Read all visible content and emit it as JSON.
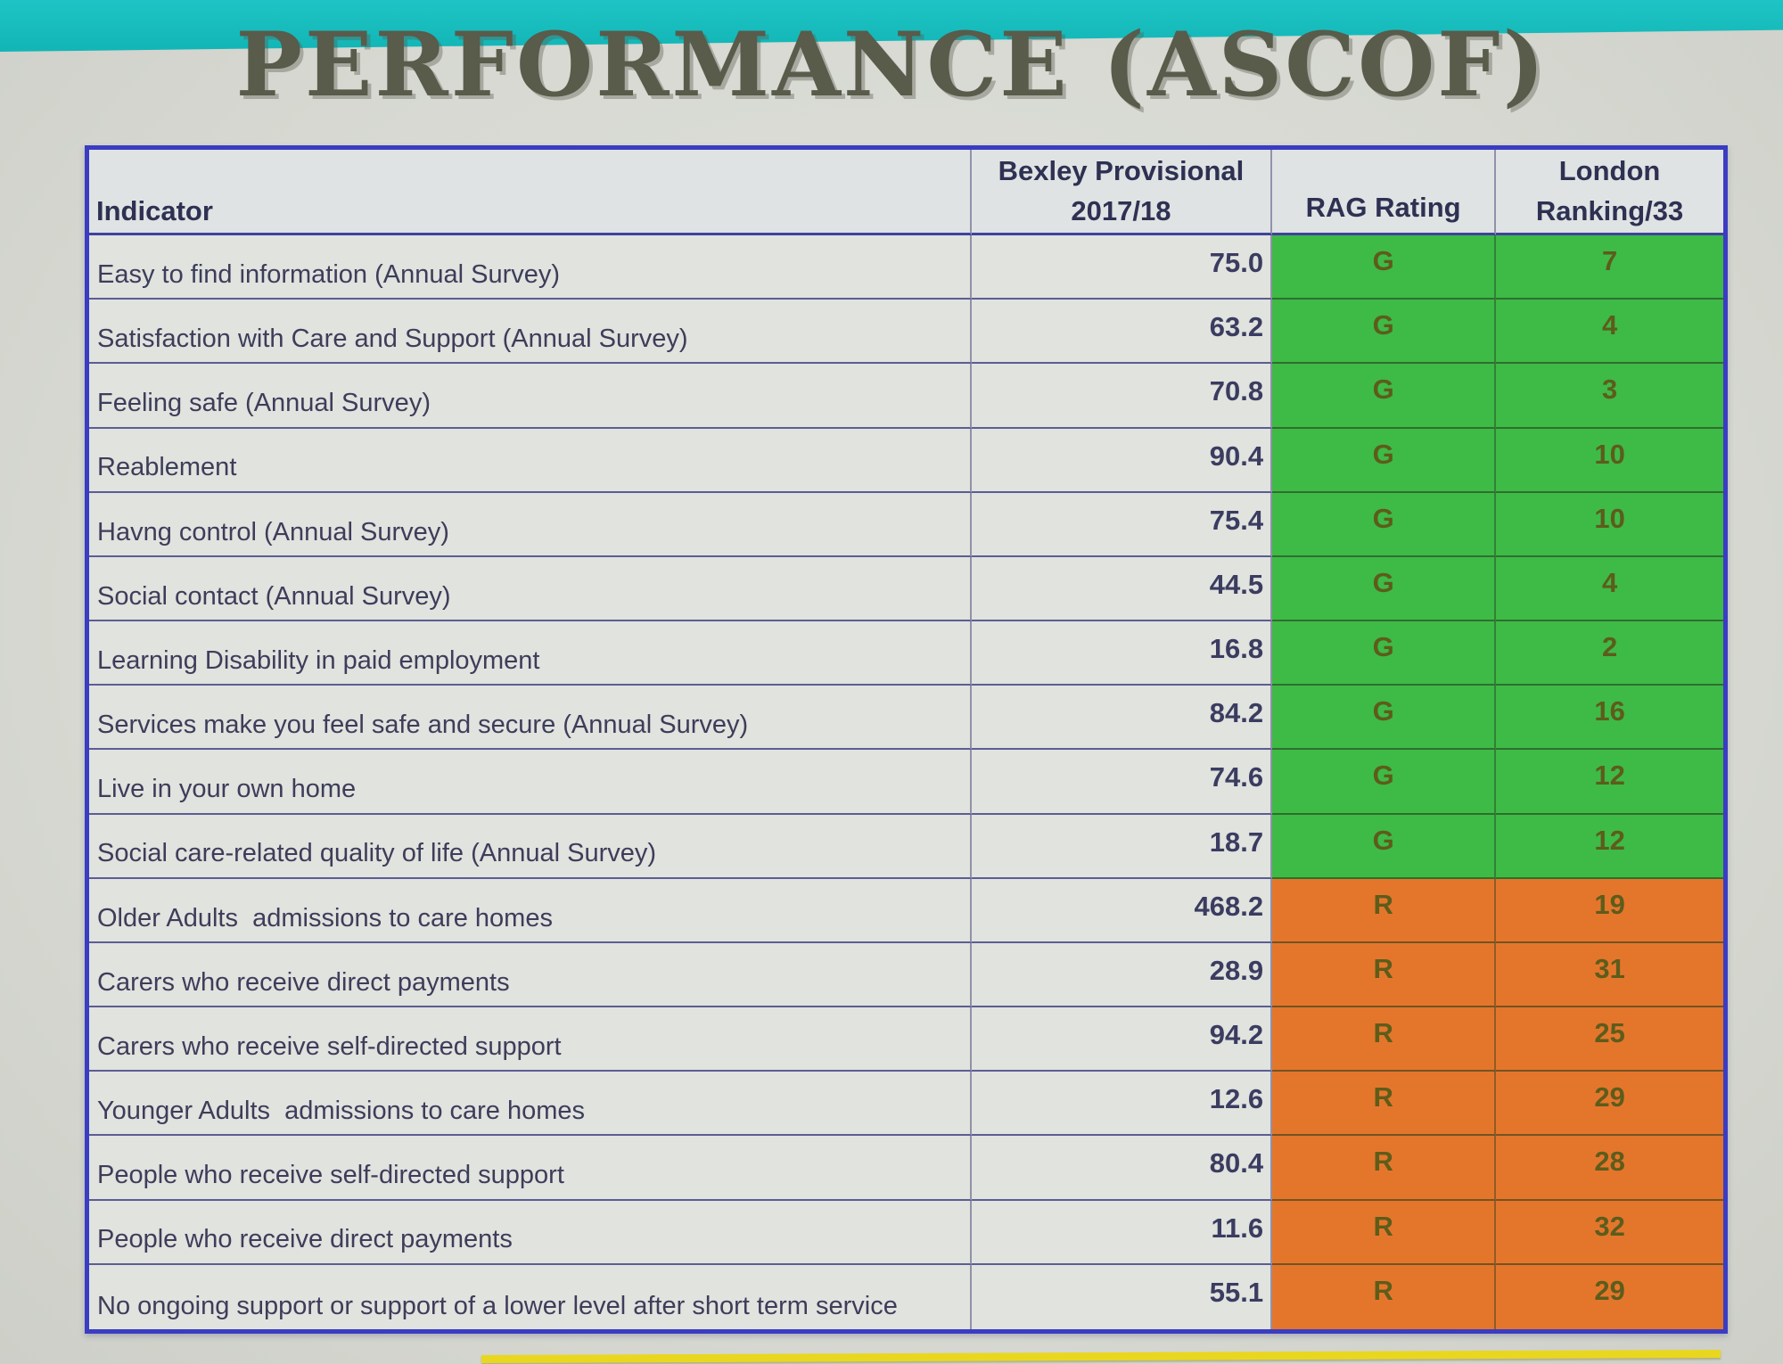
{
  "page": {
    "title": "PERFORMANCE (ASCOF)",
    "accent_teal": "#15bcbd",
    "accent_yellow": "#e9d71f",
    "background": "#d8dad3",
    "table_border_blue": "#3a3cc2"
  },
  "table": {
    "header": {
      "indicator": "Indicator",
      "bexley": "Bexley Provisional\n2017/18",
      "rag": "RAG Rating",
      "london": "London\nRanking/33"
    },
    "colors": {
      "green": "#3eba47",
      "orange": "#e4762c"
    },
    "rows": [
      {
        "indicator": "Easy to find information (Annual Survey)",
        "value": "75.0",
        "rag": "G",
        "rank": "7"
      },
      {
        "indicator": "Satisfaction with Care and Support (Annual Survey)",
        "value": "63.2",
        "rag": "G",
        "rank": "4"
      },
      {
        "indicator": "Feeling safe (Annual Survey)",
        "value": "70.8",
        "rag": "G",
        "rank": "3"
      },
      {
        "indicator": "Reablement",
        "value": "90.4",
        "rag": "G",
        "rank": "10"
      },
      {
        "indicator": "Havng control (Annual Survey)",
        "value": "75.4",
        "rag": "G",
        "rank": "10"
      },
      {
        "indicator": "Social contact (Annual Survey)",
        "value": "44.5",
        "rag": "G",
        "rank": "4"
      },
      {
        "indicator": "Learning Disability in paid employment",
        "value": "16.8",
        "rag": "G",
        "rank": "2"
      },
      {
        "indicator": "Services make you feel safe and secure (Annual Survey)",
        "value": "84.2",
        "rag": "G",
        "rank": "16"
      },
      {
        "indicator": "Live in your own home",
        "value": "74.6",
        "rag": "G",
        "rank": "12"
      },
      {
        "indicator": "Social care-related quality of life (Annual Survey)",
        "value": "18.7",
        "rag": "G",
        "rank": "12"
      },
      {
        "indicator": "Older Adults  admissions to care homes",
        "value": "468.2",
        "rag": "R",
        "rank": "19"
      },
      {
        "indicator": "Carers who receive direct payments",
        "value": "28.9",
        "rag": "R",
        "rank": "31"
      },
      {
        "indicator": "Carers who receive self-directed support",
        "value": "94.2",
        "rag": "R",
        "rank": "25"
      },
      {
        "indicator": "Younger Adults  admissions to care homes",
        "value": "12.6",
        "rag": "R",
        "rank": "29"
      },
      {
        "indicator": "People who receive self-directed support",
        "value": "80.4",
        "rag": "R",
        "rank": "28"
      },
      {
        "indicator": "People who receive direct payments",
        "value": "11.6",
        "rag": "R",
        "rank": "32"
      },
      {
        "indicator": "No ongoing support or support of a lower level after short term service",
        "value": "55.1",
        "rag": "R",
        "rank": "29"
      }
    ]
  }
}
